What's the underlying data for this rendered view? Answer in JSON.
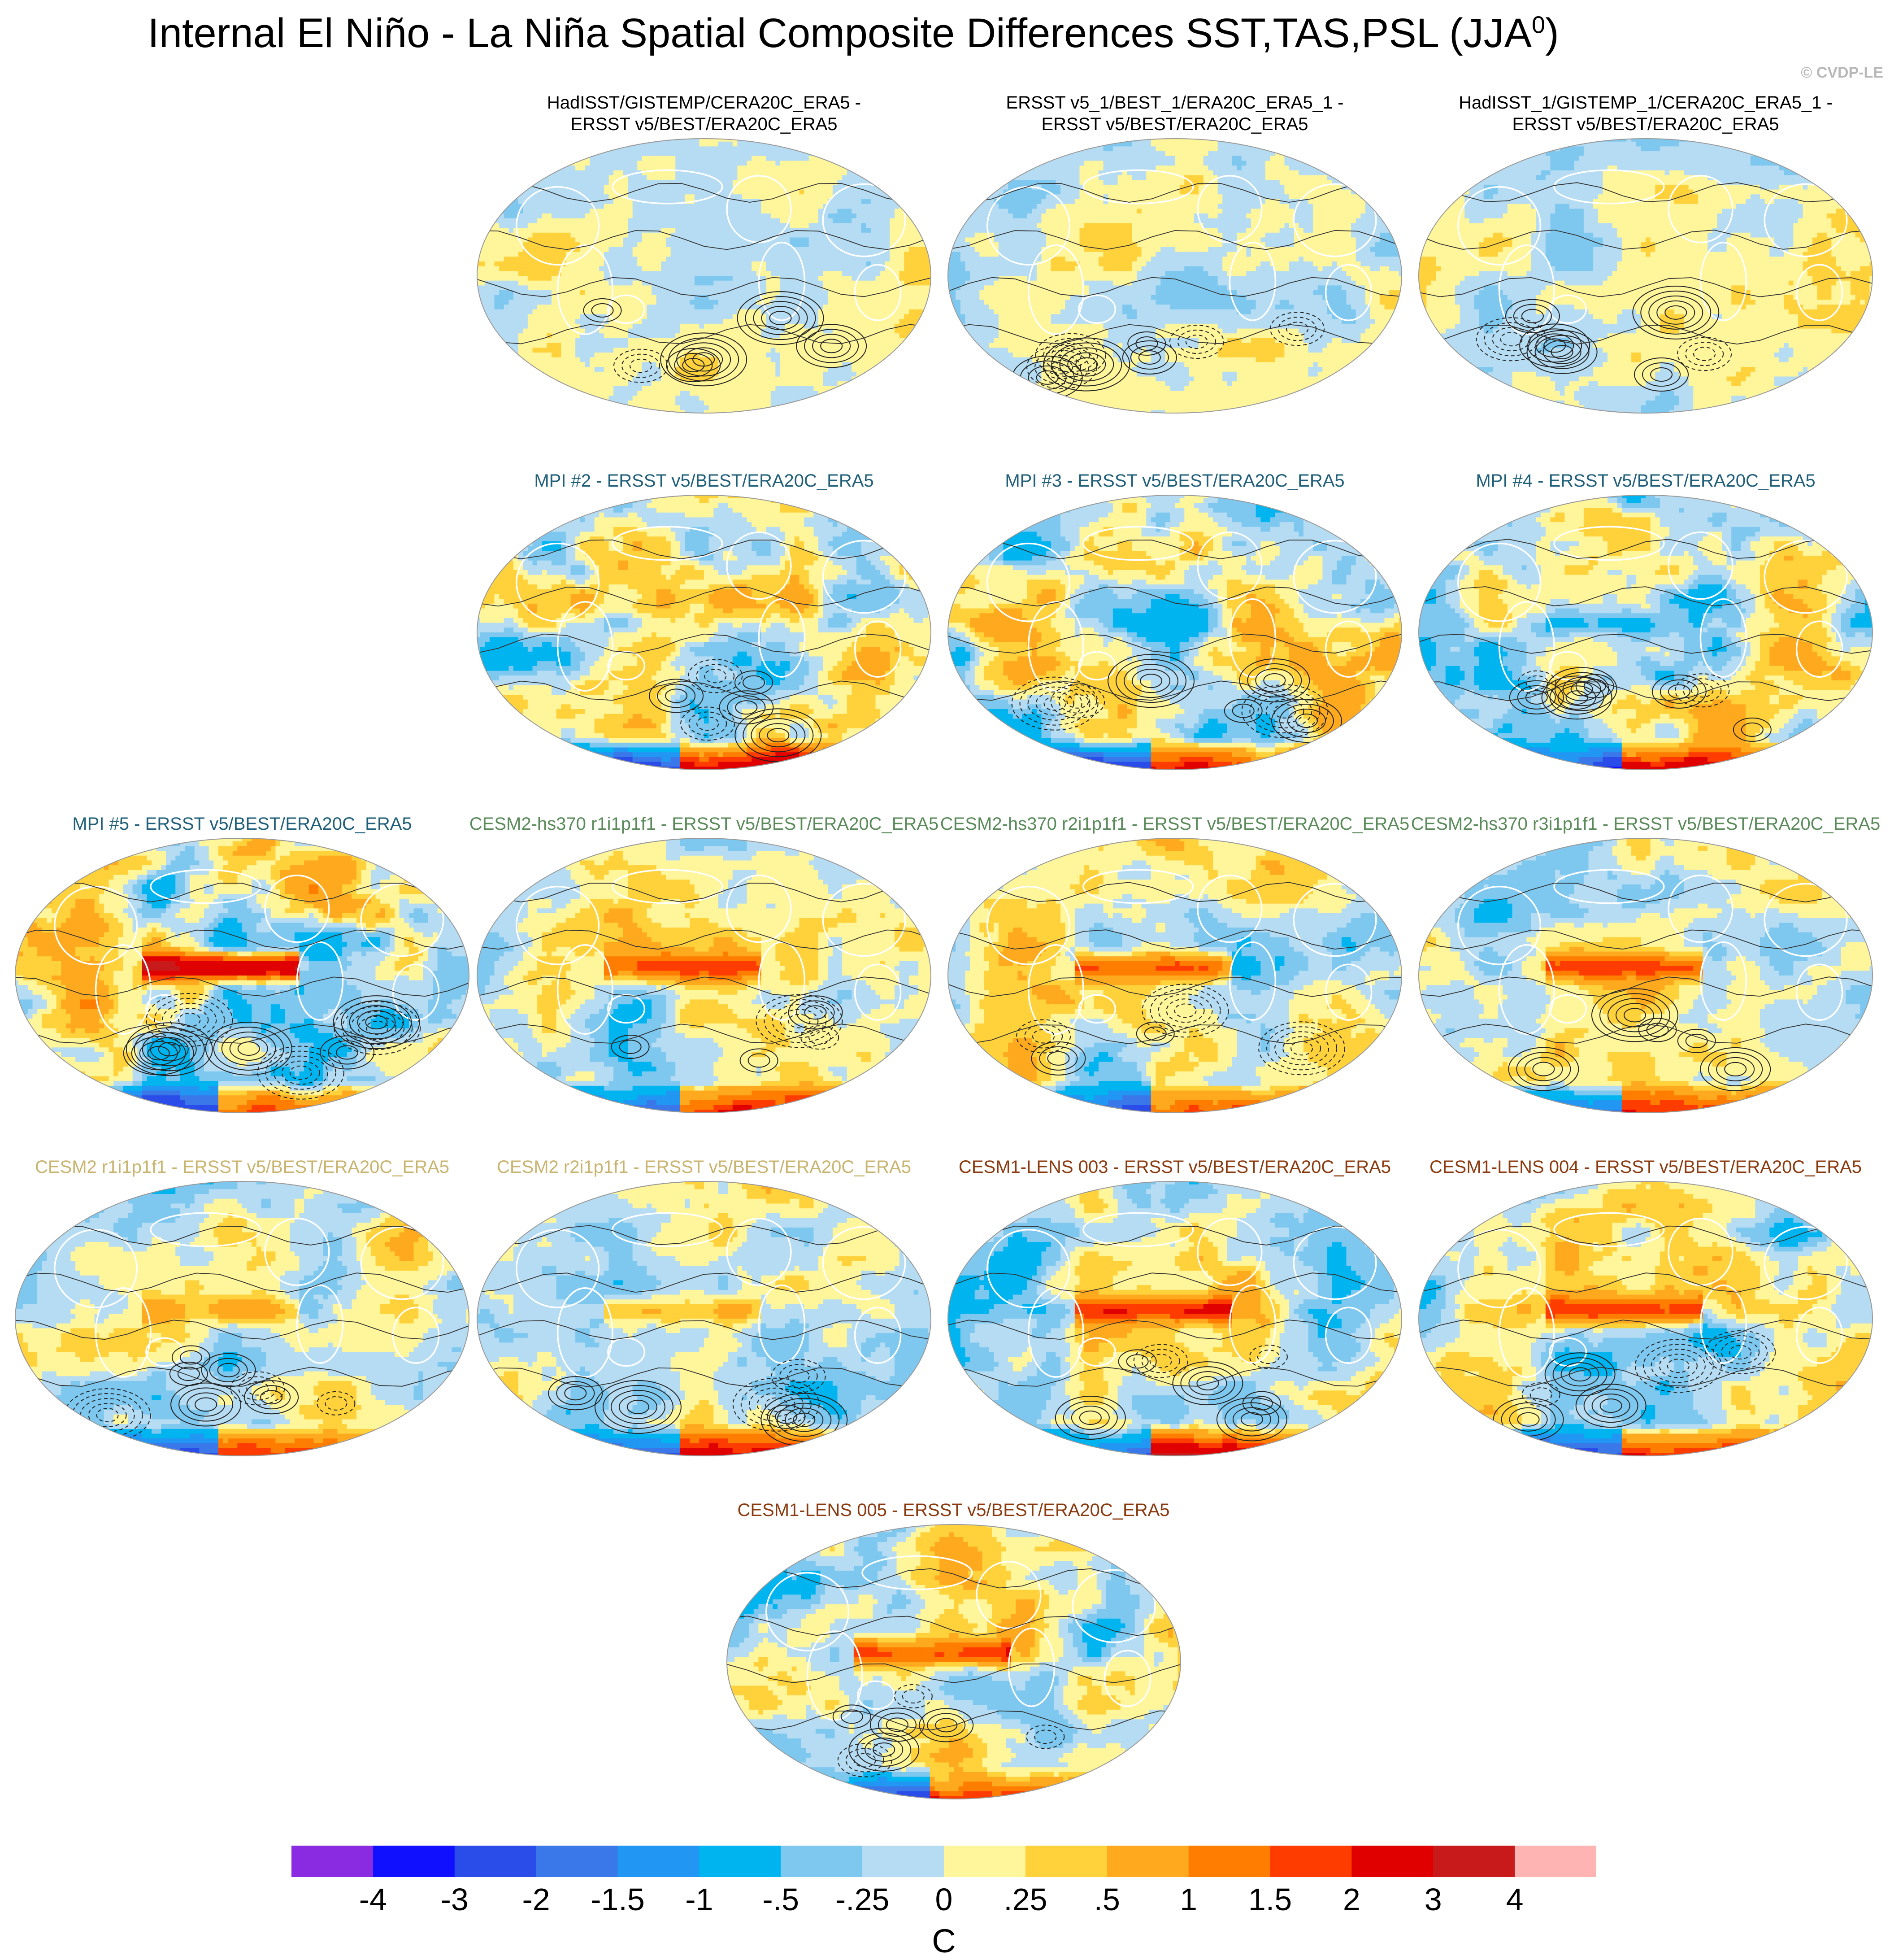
{
  "chart_data": {
    "type": "heatmap",
    "title": "Internal El Niño - La Niña Spatial Composite Differences SST,TAS,PSL (JJA",
    "title_sup": "0",
    "title_close": ")",
    "credit": "© CVDP-LE",
    "colorbar": {
      "unit": "C",
      "ticks": [
        "-4",
        "-3",
        "-2",
        "-1.5",
        "-1",
        "-.5",
        "-.25",
        "0",
        ".25",
        ".5",
        "1",
        "1.5",
        "2",
        "3",
        "4"
      ],
      "colors": [
        "#8a2be2",
        "#1010ff",
        "#2a4ce8",
        "#3a78ea",
        "#2196f3",
        "#00b4f0",
        "#7ec8f0",
        "#b5dcf2",
        "#fff59a",
        "#ffd23c",
        "#ffaa1e",
        "#ff7d00",
        "#ff3c00",
        "#e00000",
        "#c81a1a",
        "#ffb4b4"
      ]
    },
    "panels": [
      {
        "id": "p1",
        "title_lines": [
          "HadISST/GISTEMP/CERA20C_ERA5 -",
          "ERSST v5/BEST/ERA20C_ERA5"
        ],
        "title_color": "#000000",
        "pattern": "obs",
        "seed": 11
      },
      {
        "id": "p2",
        "title_lines": [
          "ERSST v5_1/BEST_1/ERA20C_ERA5_1 -",
          "ERSST v5/BEST/ERA20C_ERA5"
        ],
        "title_color": "#000000",
        "pattern": "obs",
        "seed": 23
      },
      {
        "id": "p3",
        "title_lines": [
          "HadISST_1/GISTEMP_1/CERA20C_ERA5_1 -",
          "ERSST v5/BEST/ERA20C_ERA5"
        ],
        "title_color": "#000000",
        "pattern": "obs",
        "seed": 37
      },
      {
        "id": "p4",
        "title_lines": [
          "MPI #2 - ERSST v5/BEST/ERA20C_ERA5"
        ],
        "title_color": "#1f5f7a",
        "pattern": "mpi-weak",
        "seed": 41
      },
      {
        "id": "p5",
        "title_lines": [
          "MPI #3 - ERSST v5/BEST/ERA20C_ERA5"
        ],
        "title_color": "#1f5f7a",
        "pattern": "mpi-weak",
        "seed": 53
      },
      {
        "id": "p6",
        "title_lines": [
          "MPI #4 - ERSST v5/BEST/ERA20C_ERA5"
        ],
        "title_color": "#1f5f7a",
        "pattern": "mpi-weak",
        "seed": 67
      },
      {
        "id": "p7",
        "title_lines": [
          "MPI #5 - ERSST v5/BEST/ERA20C_ERA5"
        ],
        "title_color": "#1f5f7a",
        "pattern": "mpi-strong",
        "seed": 71
      },
      {
        "id": "p8",
        "title_lines": [
          "CESM2-hs370 r1i1p1f1 - ERSST v5/BEST/ERA20C_ERA5"
        ],
        "title_color": "#5a8a5a",
        "pattern": "enso",
        "seed": 83
      },
      {
        "id": "p9",
        "title_lines": [
          "CESM2-hs370 r2i1p1f1 - ERSST v5/BEST/ERA20C_ERA5"
        ],
        "title_color": "#5a8a5a",
        "pattern": "enso",
        "seed": 97
      },
      {
        "id": "p10",
        "title_lines": [
          "CESM2-hs370 r3i1p1f1 - ERSST v5/BEST/ERA20C_ERA5"
        ],
        "title_color": "#5a8a5a",
        "pattern": "enso",
        "seed": 101
      },
      {
        "id": "p11",
        "title_lines": [
          "CESM2 r1i1p1f1 - ERSST v5/BEST/ERA20C_ERA5"
        ],
        "title_color": "#c8b46e",
        "pattern": "cesm2",
        "seed": 113
      },
      {
        "id": "p12",
        "title_lines": [
          "CESM2 r2i1p1f1 - ERSST v5/BEST/ERA20C_ERA5"
        ],
        "title_color": "#c8b46e",
        "pattern": "cesm2",
        "seed": 127
      },
      {
        "id": "p13",
        "title_lines": [
          "CESM1-LENS 003 - ERSST v5/BEST/ERA20C_ERA5"
        ],
        "title_color": "#8b3a0f",
        "pattern": "lens",
        "seed": 131
      },
      {
        "id": "p14",
        "title_lines": [
          "CESM1-LENS 004 - ERSST v5/BEST/ERA20C_ERA5"
        ],
        "title_color": "#8b3a0f",
        "pattern": "lens",
        "seed": 149
      },
      {
        "id": "p15",
        "title_lines": [
          "CESM1-LENS 005 - ERSST v5/BEST/ERA20C_ERA5"
        ],
        "title_color": "#8b3a0f",
        "pattern": "lens",
        "seed": 157
      }
    ]
  }
}
